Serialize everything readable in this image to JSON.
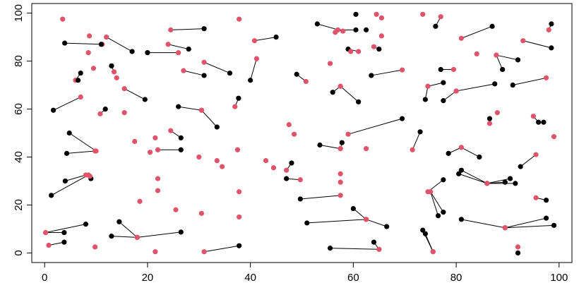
{
  "chart_data": {
    "type": "scatter",
    "links": true,
    "xlim": [
      -2.5,
      102.5
    ],
    "ylim": [
      -4,
      104
    ],
    "xticks": [
      0,
      20,
      40,
      60,
      80,
      100
    ],
    "yticks": [
      0,
      20,
      40,
      60,
      80,
      100
    ],
    "series": [
      {
        "color": "#000000",
        "x": [
          3.9,
          17,
          31,
          20,
          28,
          13,
          19.5,
          36,
          31,
          7,
          37.7,
          40,
          33.5,
          26,
          1.7,
          11.8,
          4.8,
          4.3,
          26.5,
          26.5,
          1.3,
          4,
          9,
          8,
          3.8,
          3.8,
          14.5,
          13,
          26.5,
          37.8,
          45,
          53,
          60.5,
          49,
          56,
          61,
          63.5,
          59,
          65,
          48,
          53.5,
          57.8,
          69.5,
          47,
          49.7,
          60,
          66.5,
          51,
          55.5,
          64,
          87,
          76,
          77,
          74,
          77.5,
          77.5,
          87.5,
          89,
          92,
          91,
          96,
          73,
          78.5,
          84.5,
          92.5,
          80.5,
          81,
          89.5,
          90.5,
          91.5,
          77.5,
          76.5,
          77.5,
          73.5,
          74,
          81,
          97.5,
          99,
          97.5,
          98.5,
          98.5,
          86.5
        ],
        "y": [
          87.5,
          84,
          93.5,
          83.5,
          85,
          78,
          64,
          75,
          74,
          75,
          64.5,
          72,
          52.5,
          61,
          59.5,
          60,
          50,
          41.5,
          43,
          48,
          24,
          30,
          31,
          12,
          8.5,
          4.5,
          13,
          7,
          8.7,
          3,
          90,
          95.5,
          93,
          74.5,
          67,
          63,
          74,
          85,
          85,
          37.5,
          45,
          46,
          56,
          31,
          22.5,
          18.5,
          11,
          12.5,
          2,
          4.5,
          94.5,
          94.5,
          76.5,
          64,
          71,
          63.5,
          70.5,
          76.5,
          80.5,
          70,
          54.5,
          50.5,
          41.5,
          40,
          36,
          33,
          34.5,
          29.5,
          31,
          29,
          30.5,
          15.5,
          17,
          9.5,
          8,
          14,
          14.5,
          11.5,
          22,
          95.5,
          85.5,
          56
        ]
      },
      {
        "color": "#DF536B",
        "x": [
          11.2,
          12,
          24.5,
          26,
          24,
          13.5,
          15.5,
          31,
          27,
          6,
          37,
          41.2,
          30.5,
          30.5,
          7,
          10.8,
          10,
          9.8,
          22,
          24.5,
          8.5,
          8,
          8.8,
          0.2,
          0.2,
          0.8,
          18,
          18,
          18,
          31,
          40.8,
          58,
          57,
          50.8,
          57.5,
          57.5,
          69.5,
          61,
          64,
          47,
          57.5,
          57.5,
          59,
          49.7,
          57.5,
          62.5,
          62.5,
          62.5,
          65,
          65,
          81,
          77,
          79.5,
          74.5,
          74.5,
          80,
          80,
          87.8,
          87.8,
          97.5,
          95,
          71.5,
          81,
          81,
          95.5,
          86,
          86,
          86,
          86,
          86,
          74.5,
          75,
          75,
          75.5,
          75.5,
          89.5,
          89.5,
          89.5,
          95.5,
          98,
          93,
          86.5
        ],
        "y": [
          87,
          90,
          93,
          83.5,
          87,
          75.5,
          68.5,
          79.5,
          76,
          72,
          61,
          81,
          59.5,
          59.5,
          65,
          58,
          42.5,
          42.5,
          43,
          51,
          32.5,
          32.5,
          32,
          8.5,
          8.5,
          3.2,
          6.5,
          6.5,
          6.5,
          0.5,
          88.5,
          92.5,
          93,
          71.5,
          69.5,
          69.5,
          76.3,
          84,
          86,
          34.5,
          43.5,
          43.5,
          49.5,
          30.5,
          24,
          14,
          14,
          14,
          1.5,
          1.5,
          89.5,
          98.5,
          76.5,
          69.5,
          69.5,
          67.5,
          67.5,
          82.5,
          82.5,
          73,
          57,
          43,
          44,
          44,
          41,
          29,
          29,
          29,
          29,
          29,
          25.5,
          25.5,
          25.5,
          0.5,
          0.5,
          10.5,
          10.5,
          10.5,
          23,
          93,
          88.5,
          54
        ]
      },
      {
        "color": "#DF536B",
        "x": [
          3.5,
          37.8,
          56.5,
          64.5,
          65.5,
          8.7,
          8.5,
          9.5,
          14,
          15.5,
          17.5,
          20.5,
          21.5,
          22,
          22,
          18.5,
          25.5,
          30,
          33.5,
          37.5,
          34.5,
          37.8,
          37.8,
          30.5,
          21.5,
          9.8,
          43,
          44.5,
          47.5,
          48.5,
          55.5,
          57.5,
          57.5,
          62.5,
          84,
          88,
          99,
          92,
          73.5,
          65.5,
          59.5
        ],
        "y": [
          97.5,
          97.5,
          92,
          99.5,
          98,
          90.5,
          83.5,
          77,
          73,
          58.5,
          46.5,
          42,
          48,
          31,
          26,
          21.5,
          18,
          40,
          38.5,
          43,
          36,
          25.5,
          15,
          16.5,
          0.5,
          2.5,
          38.5,
          35.5,
          53.5,
          49.5,
          79,
          33,
          29.5,
          43.5,
          83,
          58.5,
          48.5,
          2.5,
          99.5,
          90.5,
          84
        ]
      },
      {
        "color": "#000000",
        "x": [
          60.5,
          92,
          11,
          97,
          6.5,
          62.5
        ],
        "y": [
          99.5,
          0,
          87,
          54.5,
          72,
          93
        ]
      }
    ]
  }
}
